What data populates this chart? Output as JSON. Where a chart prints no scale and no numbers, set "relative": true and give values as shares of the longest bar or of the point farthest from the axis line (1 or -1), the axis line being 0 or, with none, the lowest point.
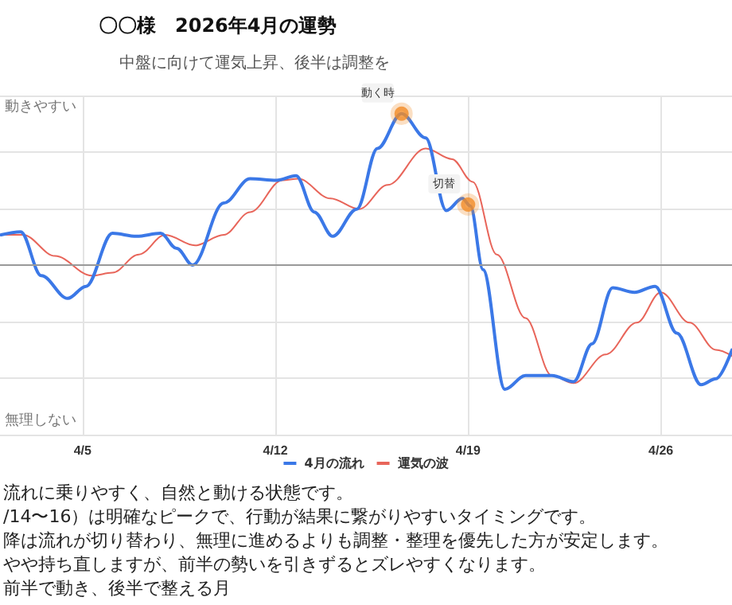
{
  "chart_data": {
    "type": "line",
    "title": "〇〇様　2026年4月の運勢",
    "subtitle": "中盤に向けて運気上昇、後半は調整を",
    "relative": true,
    "xlim": [
      "2026-04-02T00:00",
      "2026-04-28T14:00"
    ],
    "xticks": [
      {
        "value": "2026-04-05",
        "label": "4/5"
      },
      {
        "value": "2026-04-12",
        "label": "4/12"
      },
      {
        "value": "2026-04-19",
        "label": "4/19"
      },
      {
        "value": "2026-04-26",
        "label": "4/26"
      }
    ],
    "grid": true,
    "legend": "bottom",
    "marker": "none",
    "line_style": "solid",
    "series": [
      {
        "name": "4月の流れ",
        "color": "#3b78e7",
        "x": [
          "2026-04-02T01:00",
          "2026-04-02T18:00",
          "2026-04-03T12:00",
          "2026-04-04T11:00",
          "2026-04-05T03:00",
          "2026-04-06T02:00",
          "2026-04-06T23:00",
          "2026-04-07T20:00",
          "2026-04-08T10:00",
          "2026-04-09T00:00",
          "2026-04-10T03:00",
          "2026-04-11T02:00",
          "2026-04-12T01:00",
          "2026-04-12T18:00",
          "2026-04-13T10:00",
          "2026-04-14T02:00",
          "2026-04-14T23:00",
          "2026-04-15T17:00",
          "2026-04-16T14:00",
          "2026-04-17T11:00",
          "2026-04-18T05:00",
          "2026-04-18T19:00",
          "2026-04-19T02:00",
          "2026-04-19T13:00",
          "2026-04-20T08:00",
          "2026-04-21T02:00",
          "2026-04-22T01:00",
          "2026-04-22T20:00",
          "2026-04-23T12:00",
          "2026-04-24T06:00",
          "2026-04-25T01:00",
          "2026-04-25T19:00",
          "2026-04-26T14:00",
          "2026-04-27T11:00",
          "2026-04-28T00:00",
          "2026-04-28T14:00"
        ],
        "values": [
          0.2,
          0.22,
          -0.07,
          -0.22,
          -0.14,
          0.21,
          0.19,
          0.21,
          0.11,
          0,
          0.41,
          0.57,
          0.56,
          0.59,
          0.35,
          0.19,
          0.37,
          0.77,
          1,
          0.84,
          0.36,
          0.44,
          0.39,
          -0.03,
          -0.82,
          -0.73,
          -0.73,
          -0.77,
          -0.52,
          -0.15,
          -0.18,
          -0.14,
          -0.45,
          -0.79,
          -0.75,
          -0.56
        ]
      },
      {
        "name": "運気の波",
        "color": "#e8655a",
        "x": [
          "2026-04-02T01:00",
          "2026-04-02T20:00",
          "2026-04-04T00:00",
          "2026-04-05T08:00",
          "2026-04-06T02:00",
          "2026-04-07T01:00",
          "2026-04-08T00:00",
          "2026-04-09T02:00",
          "2026-04-10T03:00",
          "2026-04-11T02:00",
          "2026-04-12T06:00",
          "2026-04-12T20:00",
          "2026-04-14T00:00",
          "2026-04-15T01:00",
          "2026-04-16T02:00",
          "2026-04-17T11:00",
          "2026-04-18T10:00",
          "2026-04-19T04:00",
          "2026-04-20T01:00",
          "2026-04-21T02:00",
          "2026-04-22T01:00",
          "2026-04-22T20:00",
          "2026-04-24T00:00",
          "2026-04-25T03:00",
          "2026-04-26T00:00",
          "2026-04-27T01:00",
          "2026-04-28T00:00",
          "2026-04-28T14:00"
        ],
        "values": [
          0.2,
          0.2,
          0.06,
          -0.07,
          -0.05,
          0.07,
          0.2,
          0.13,
          0.2,
          0.35,
          0.56,
          0.57,
          0.44,
          0.37,
          0.53,
          0.77,
          0.7,
          0.55,
          0.07,
          -0.35,
          -0.73,
          -0.78,
          -0.59,
          -0.38,
          -0.18,
          -0.38,
          -0.56,
          -0.6
        ]
      },
      {
        "type": "scatter",
        "color": "#f28c28",
        "marker": "circle",
        "x": [
          "2026-04-16T14:00",
          "2026-04-19T00:00"
        ],
        "values": [
          1,
          0.4
        ]
      }
    ],
    "annotations": [
      {
        "text": "動く時",
        "x": "2026-04-16T14:00",
        "y": 1
      },
      {
        "text": "切替",
        "x": "2026-04-19T00:00",
        "y": 0.4
      },
      "動きやすい",
      "無理しない",
      "流れに乗りやすく、自然と動ける状態です。",
      "/14〜16）は明確なピークで、行動が結果に繋がりやすいタイミングです。",
      "降は流れが切り替わり、無理に進めるよりも調整・整理を優先した方が安定します。",
      "やや持ち直しますが、前半の勢いを引きずるとズレやすくなります。",
      "前半で動き、後半で整える月"
    ]
  }
}
